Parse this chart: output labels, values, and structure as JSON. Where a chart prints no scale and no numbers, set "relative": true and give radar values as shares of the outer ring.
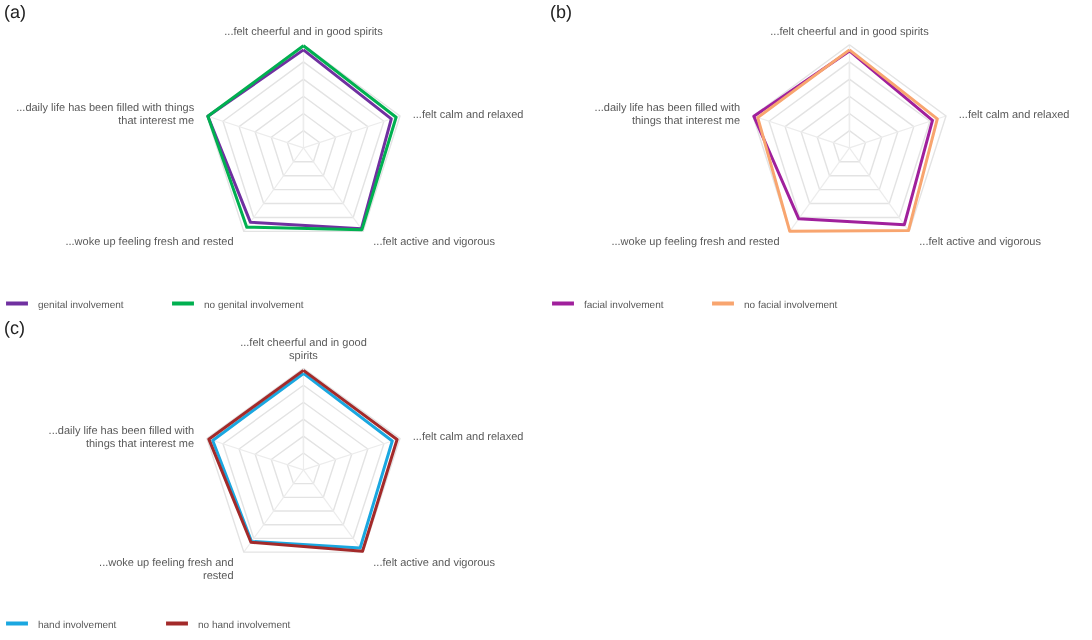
{
  "chart_data": [
    {
      "type": "radar",
      "title": "(a)",
      "relative": true,
      "grid": true,
      "legend": "bottom",
      "categories": [
        "...felt cheerful and in good spirits",
        "...felt calm and relaxed",
        "...felt active and vigorous",
        "...woke up feeling fresh and rested",
        "...daily life has been filled with things that interest me"
      ],
      "series": [
        {
          "name": "genital involvement",
          "color": "#7030a0",
          "values": [
            0.95,
            0.91,
            0.97,
            0.89,
            0.99
          ]
        },
        {
          "name": "no genital involvement",
          "color": "#00b050",
          "values": [
            0.99,
            0.96,
            0.98,
            0.95,
            0.99
          ]
        }
      ]
    },
    {
      "type": "radar",
      "title": "(b)",
      "relative": true,
      "grid": true,
      "legend": "bottom",
      "categories": [
        "...felt cheerful and in good spirits",
        "...felt calm and relaxed",
        "...felt active and vigorous",
        "...woke up feeling fresh and rested",
        "...daily life has been filled with things that interest me"
      ],
      "series": [
        {
          "name": "facial involvement",
          "color": "#a0209c",
          "values": [
            0.94,
            0.86,
            0.92,
            0.85,
            0.99
          ]
        },
        {
          "name": "no facial involvement",
          "color": "#f8a56f",
          "values": [
            0.95,
            0.91,
            0.99,
            1.0,
            0.95
          ]
        }
      ]
    },
    {
      "type": "radar",
      "title": "(c)",
      "relative": true,
      "grid": true,
      "legend": "bottom",
      "categories": [
        "...felt cheerful and in good spirits",
        "...felt calm and relaxed",
        "...felt active and vigorous",
        "...woke up feeling fresh and rested",
        "...daily life has been filled with things that interest me"
      ],
      "series": [
        {
          "name": "hand involvement",
          "color": "#1aa7e0",
          "values": [
            0.95,
            0.92,
            0.95,
            0.87,
            0.94
          ]
        },
        {
          "name": "no hand involvement",
          "color": "#a32a2a",
          "values": [
            0.98,
            0.97,
            0.99,
            0.88,
            0.98
          ]
        }
      ]
    }
  ]
}
